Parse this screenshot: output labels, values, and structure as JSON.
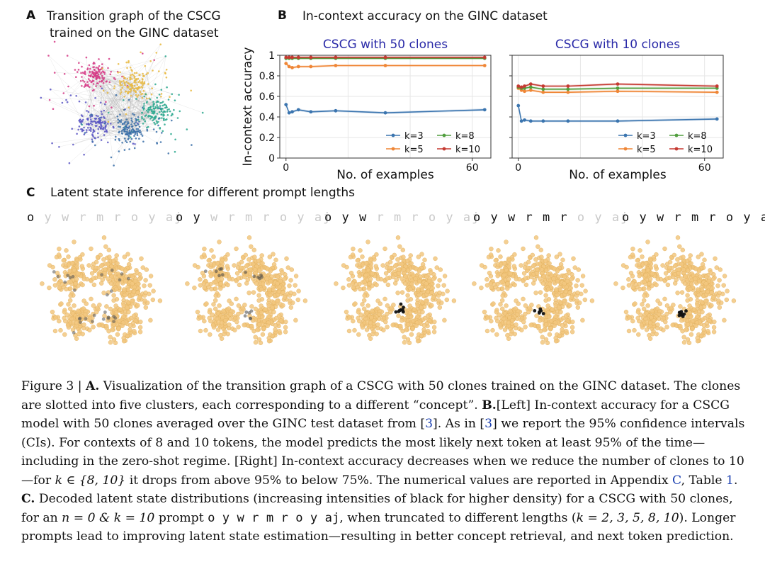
{
  "panelA": {
    "label": "A",
    "title_line1": "Transition graph of the CSCG",
    "title_line2": "trained on the GINC dataset",
    "cluster_colors": [
      "#d63a86",
      "#e8b840",
      "#2aa88e",
      "#5b56c4",
      "#3a6fa8"
    ]
  },
  "panelB": {
    "label": "B",
    "title": "In-context accuracy on the GINC dataset"
  },
  "panelC": {
    "label": "C",
    "title": "Latent state inference for different prompt lengths",
    "tokens": [
      "o",
      "y",
      "w",
      "r",
      "m",
      "r",
      "o",
      "y",
      "aj"
    ],
    "prompt_lengths": [
      1,
      2,
      3,
      6,
      9
    ]
  },
  "chart_data": [
    {
      "type": "line",
      "title": "CSCG with 50 clones",
      "xlabel": "No. of examples",
      "ylabel": "In-context accuracy",
      "xlim": [
        -2,
        66
      ],
      "ylim": [
        0,
        1
      ],
      "xticks": [
        0,
        60
      ],
      "yticks": [
        0,
        0.2,
        0.4,
        0.6,
        0.8,
        1
      ],
      "ytick_labels": [
        "0",
        "0.2",
        "0.4",
        "0.6",
        "0.8",
        "1"
      ],
      "grid": true,
      "legend_position": "bottom-right",
      "series": [
        {
          "name": "k=3",
          "color": "#3b75af",
          "x": [
            0,
            1,
            2,
            4,
            8,
            16,
            32,
            64
          ],
          "values": [
            0.52,
            0.44,
            0.45,
            0.47,
            0.45,
            0.46,
            0.44,
            0.47
          ]
        },
        {
          "name": "k=5",
          "color": "#ef8636",
          "x": [
            0,
            1,
            2,
            4,
            8,
            16,
            32,
            64
          ],
          "values": [
            0.92,
            0.89,
            0.88,
            0.89,
            0.89,
            0.9,
            0.9,
            0.9
          ]
        },
        {
          "name": "k=8",
          "color": "#519e3e",
          "x": [
            0,
            1,
            2,
            4,
            8,
            16,
            32,
            64
          ],
          "values": [
            0.97,
            0.97,
            0.97,
            0.97,
            0.97,
            0.97,
            0.97,
            0.97
          ]
        },
        {
          "name": "k=10",
          "color": "#c53a32",
          "x": [
            0,
            1,
            2,
            4,
            8,
            16,
            32,
            64
          ],
          "values": [
            0.98,
            0.98,
            0.98,
            0.98,
            0.98,
            0.98,
            0.98,
            0.98
          ]
        }
      ]
    },
    {
      "type": "line",
      "title": "CSCG with 10 clones",
      "xlabel": "No. of examples",
      "ylabel": "",
      "xlim": [
        -2,
        66
      ],
      "ylim": [
        0,
        1
      ],
      "xticks": [
        0,
        60
      ],
      "yticks": [
        0,
        0.2,
        0.4,
        0.6,
        0.8,
        1
      ],
      "ytick_labels": [],
      "grid": true,
      "legend_position": "bottom-right",
      "series": [
        {
          "name": "k=3",
          "color": "#3b75af",
          "x": [
            0,
            1,
            2,
            4,
            8,
            16,
            32,
            64
          ],
          "values": [
            0.51,
            0.36,
            0.37,
            0.36,
            0.36,
            0.36,
            0.36,
            0.38
          ]
        },
        {
          "name": "k=5",
          "color": "#ef8636",
          "x": [
            0,
            1,
            2,
            4,
            8,
            16,
            32,
            64
          ],
          "values": [
            0.68,
            0.66,
            0.65,
            0.66,
            0.64,
            0.64,
            0.65,
            0.64
          ]
        },
        {
          "name": "k=8",
          "color": "#519e3e",
          "x": [
            0,
            1,
            2,
            4,
            8,
            16,
            32,
            64
          ],
          "values": [
            0.69,
            0.68,
            0.68,
            0.69,
            0.67,
            0.67,
            0.68,
            0.68
          ]
        },
        {
          "name": "k=10",
          "color": "#c53a32",
          "x": [
            0,
            1,
            2,
            4,
            8,
            16,
            32,
            64
          ],
          "values": [
            0.7,
            0.69,
            0.7,
            0.72,
            0.7,
            0.7,
            0.72,
            0.7
          ]
        }
      ]
    }
  ],
  "caption": {
    "s1": "Figure 3 | ",
    "s2": "A.",
    "s3": " Visualization of the transition graph of a CSCG with 50 clones trained on the GINC dataset. The clones are slotted into five clusters, each corresponding to a different “concept”. ",
    "s4": "B.",
    "s5": "[Left] In-context accuracy for a CSCG model with 50 clones averaged over the GINC test dataset from [",
    "s6": "3",
    "s7": "]. As in [",
    "s8": "3",
    "s9": "] we report the 95% confidence intervals (CIs). For contexts of 8 and 10 tokens, the model predicts the most likely next token at least 95% of the time—including in the zero-shot regime. [Right] In-context accuracy decreases when we reduce the number of clones to 10—for ",
    "s10": "k ∈ {8, 10}",
    "s11": " it drops from above 95% to below 75%. The numerical values are reported in Appendix ",
    "s12": "C",
    "s13": ", Table ",
    "s14": "1",
    "s15": ". ",
    "s16": "C.",
    "s17": " Decoded latent state distributions (increasing intensities of black for higher density) for a CSCG with 50 clones, for an ",
    "s18": "n = 0 & k = 10",
    "s19": " prompt ",
    "s20": "o y w r m r o y aj",
    "s21": ", when truncated to different lengths (",
    "s22": "k = 2, 3, 5, 8, 10",
    "s23": "). Longer prompts lead to improving latent state estimation—resulting in better concept retrieval, and next token prediction."
  }
}
